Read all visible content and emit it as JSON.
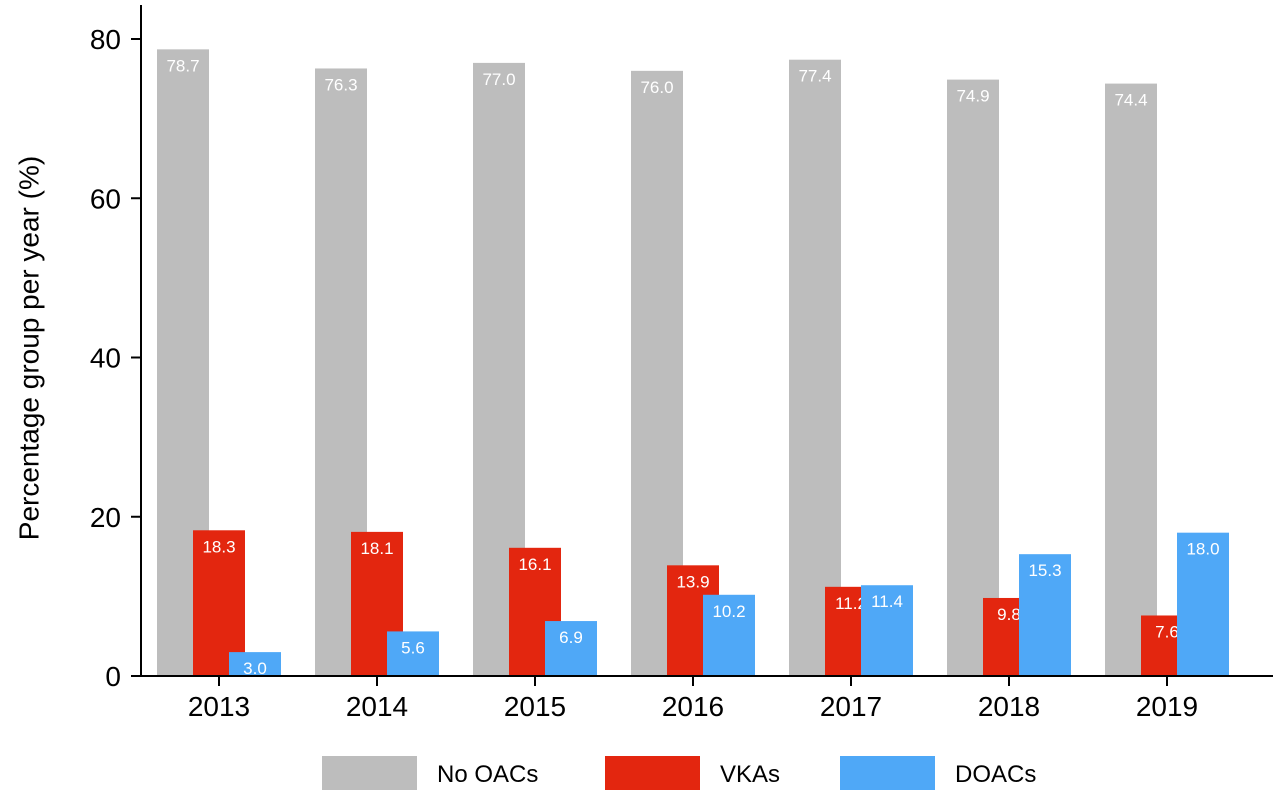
{
  "chart_data": {
    "type": "bar",
    "categories": [
      "2013",
      "2014",
      "2015",
      "2016",
      "2017",
      "2018",
      "2019"
    ],
    "series": [
      {
        "name": "No OACs",
        "color": "#bdbdbd",
        "values": [
          78.7,
          76.3,
          77.0,
          76.0,
          77.4,
          74.9,
          74.4
        ],
        "labels": [
          "78.7",
          "76.3",
          "77.0",
          "76.0",
          "77.4",
          "74.9",
          "74.4"
        ]
      },
      {
        "name": "VKAs",
        "color": "#e3260f",
        "values": [
          18.3,
          18.1,
          16.1,
          13.9,
          11.2,
          9.8,
          7.6
        ],
        "labels": [
          "18.3",
          "18.1",
          "16.1",
          "13.9",
          "11.2",
          "9.8",
          "7.6"
        ]
      },
      {
        "name": "DOACs",
        "color": "#4fa8f7",
        "values": [
          3.0,
          5.6,
          6.9,
          10.2,
          11.4,
          15.3,
          18.0
        ],
        "labels": [
          "3.0",
          "5.6",
          "6.9",
          "10.2",
          "11.4",
          "15.3",
          "18.0"
        ]
      }
    ],
    "title": "",
    "xlabel": "",
    "ylabel": "Percentage group per year (%)",
    "ylim": [
      0,
      80
    ],
    "yticks": [
      "0",
      "20",
      "40",
      "60",
      "80"
    ],
    "grid": false,
    "legend_position": "bottom"
  }
}
